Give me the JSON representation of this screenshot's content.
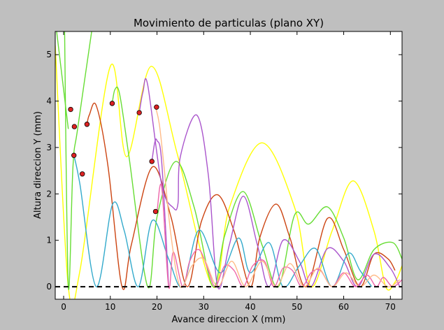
{
  "chart_data": {
    "type": "line",
    "title": "Movimiento de particulas (plano XY)",
    "xlabel": "Avance direccion X (mm)",
    "ylabel": "Altura direccion Y (mm)",
    "xlim": [
      -1.8,
      72.5
    ],
    "ylim": [
      -0.27,
      5.5
    ],
    "xticks": [
      0,
      10,
      20,
      30,
      40,
      50,
      60,
      70
    ],
    "yticks": [
      0.0,
      1.0,
      2.0,
      3.0,
      4.0,
      5.0
    ],
    "xtick_labels": [
      "0",
      "10",
      "20",
      "30",
      "40",
      "50",
      "60",
      "70"
    ],
    "ytick_labels": [
      "0",
      "1",
      "2",
      "3",
      "4",
      "5"
    ],
    "grid": false,
    "ground_line": {
      "y": 0,
      "style": "dashed",
      "color": "#000000"
    },
    "marker_color": "#dd2222",
    "series": [
      {
        "color": "#ffff00",
        "x": [
          -1.8,
          1.0,
          3.5,
          10.0,
          13.5,
          18.8,
          24.5,
          32.0,
          35.5,
          42.5,
          49.5,
          53.0,
          57.5,
          62.0,
          66.5,
          69.0,
          71.0,
          72.5
        ],
        "y": [
          5.2,
          0.0,
          0.35,
          4.75,
          2.8,
          4.75,
          2.8,
          0.0,
          1.7,
          3.1,
          1.7,
          0.0,
          1.2,
          2.28,
          1.2,
          0.0,
          0.1,
          0.45
        ]
      },
      {
        "color": "#66dd33",
        "x": [
          0.2,
          1.0,
          2.0,
          3.0,
          6.0
        ],
        "y": [
          5.5,
          0.0,
          2.6,
          3.4,
          5.5
        ]
      },
      {
        "color": "#66dd33",
        "x": [
          -1.5,
          1.0
        ],
        "y": [
          5.5,
          3.4
        ]
      },
      {
        "color": "#66dd33",
        "x": [
          10.4,
          11.0,
          12.0,
          14.0,
          18.0,
          20.0,
          24.0,
          28.0,
          32.0,
          34.5,
          38.5,
          42.5,
          46.0,
          49.5,
          52.5,
          56.5,
          60.0,
          63.0,
          66.5,
          70.5,
          72.5
        ],
        "y": [
          3.95,
          4.25,
          4.15,
          2.8,
          0.0,
          1.5,
          2.7,
          1.7,
          0.0,
          1.1,
          2.05,
          0.9,
          0.0,
          1.55,
          1.35,
          1.72,
          1.05,
          0.15,
          0.8,
          0.95,
          0.6
        ]
      },
      {
        "color": "#cc4411",
        "x": [
          5.0,
          5.5,
          7.0,
          9.5,
          12.5,
          14.5,
          19.0,
          23.0,
          26.5,
          29.5,
          33.0,
          36.5,
          40.0,
          42.0,
          45.5,
          48.5,
          52.0,
          56.5,
          60.0,
          63.5,
          66.5,
          69.5,
          71.0
        ],
        "y": [
          3.5,
          3.7,
          3.9,
          2.6,
          0.0,
          0.9,
          2.58,
          1.5,
          0.0,
          1.4,
          1.98,
          1.2,
          0.0,
          1.05,
          1.78,
          1.05,
          0.0,
          1.47,
          0.8,
          0.0,
          0.7,
          0.6,
          0.35
        ]
      },
      {
        "color": "#aa55cc",
        "x": [
          16.2,
          17.0,
          18.0,
          21.0,
          23.5,
          24.5,
          25.0,
          28.5,
          31.0,
          33.0,
          35.5,
          38.5,
          41.5,
          44.0,
          47.0,
          50.5,
          53.0,
          56.5,
          60.0,
          63.0,
          66.5,
          70.0,
          72.0
        ],
        "y": [
          3.75,
          4.2,
          4.35,
          2.2,
          1.7,
          1.8,
          2.8,
          3.7,
          2.4,
          0.0,
          0.9,
          1.95,
          0.9,
          0.0,
          1.0,
          0.55,
          0.0,
          0.82,
          0.55,
          0.0,
          0.7,
          0.4,
          0.0
        ]
      },
      {
        "color": "#aa55cc",
        "x": [
          18.9,
          19.5,
          20.0,
          21.0,
          22.5
        ],
        "y": [
          2.7,
          3.1,
          3.15,
          2.7,
          0.0
        ]
      },
      {
        "color": "#33aacc",
        "x": [
          2.2,
          3.5,
          7.0,
          10.5,
          13.0,
          16.0,
          19.0,
          22.5,
          25.5,
          29.0,
          33.5,
          37.5,
          40.0,
          44.0,
          47.0,
          50.5,
          54.0,
          57.5,
          61.0,
          63.5,
          66.0
        ],
        "y": [
          2.83,
          2.2,
          0.0,
          1.78,
          1.2,
          0.0,
          1.43,
          0.6,
          0.0,
          1.22,
          0.3,
          1.05,
          0.3,
          0.95,
          0.0,
          0.45,
          0.82,
          0.0,
          0.72,
          0.35,
          0.0
        ]
      },
      {
        "color": "#ee66aa",
        "x": [
          19.7,
          20.0,
          21.0,
          22.5,
          23.5,
          25.5,
          27.0,
          29.0,
          31.0,
          32.5,
          34.5,
          36.5,
          38.5,
          40.5,
          43.0,
          45.0,
          47.0,
          49.0,
          51.0,
          53.0,
          55.0,
          57.5,
          60.0,
          62.5,
          65.0,
          67.0,
          68.5,
          70.5,
          72.5
        ],
        "y": [
          1.62,
          1.62,
          2.15,
          0.0,
          0.75,
          0.0,
          0.55,
          0.8,
          0.35,
          0.0,
          0.45,
          0.35,
          0.0,
          0.45,
          0.55,
          0.0,
          0.4,
          0.35,
          0.0,
          0.3,
          0.35,
          0.0,
          0.3,
          0.0,
          0.25,
          0.0,
          0.2,
          0.0,
          0.15
        ]
      },
      {
        "color": "#ffbb88",
        "x": [
          19.7,
          20.5,
          21.5,
          23.0,
          25.0,
          27.5,
          30.0,
          33.0,
          36.0,
          39.0,
          42.5,
          45.5,
          48.5,
          51.5,
          54.5,
          57.5,
          60.5,
          63.5,
          66.5,
          69.5,
          72.0
        ],
        "y": [
          3.87,
          3.5,
          2.6,
          1.1,
          0.0,
          0.45,
          0.6,
          0.0,
          0.55,
          0.0,
          0.55,
          0.0,
          0.5,
          0.0,
          0.4,
          0.0,
          0.3,
          0.0,
          0.25,
          0.0,
          0.15
        ]
      }
    ],
    "points": [
      {
        "x": 1.5,
        "y": 3.82
      },
      {
        "x": 2.3,
        "y": 3.45
      },
      {
        "x": 2.2,
        "y": 2.83
      },
      {
        "x": 4.0,
        "y": 2.43
      },
      {
        "x": 5.0,
        "y": 3.5
      },
      {
        "x": 10.4,
        "y": 3.95
      },
      {
        "x": 16.2,
        "y": 3.75
      },
      {
        "x": 19.9,
        "y": 3.87
      },
      {
        "x": 18.9,
        "y": 2.7
      },
      {
        "x": 19.7,
        "y": 1.62
      }
    ]
  }
}
